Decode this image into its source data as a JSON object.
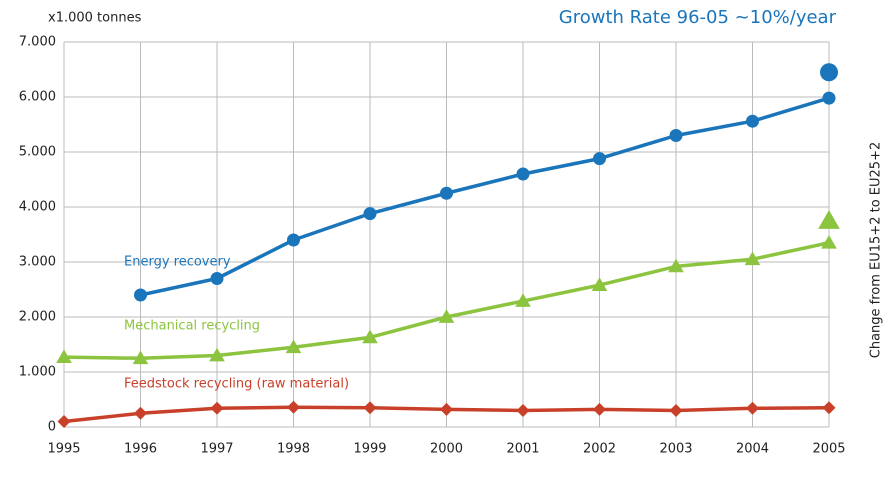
{
  "chart_data": {
    "type": "line",
    "title": "Growth Rate 96-05 ~10%/year",
    "y_label": "x1.000 tonnes",
    "annotation": "Change from EU15+2 to EU25+2",
    "x": [
      1995,
      1996,
      1997,
      1998,
      1999,
      2000,
      2001,
      2002,
      2003,
      2004,
      2005
    ],
    "xlim": [
      1995,
      2005
    ],
    "xticks": [
      1995,
      1996,
      1997,
      1998,
      1999,
      2000,
      2001,
      2002,
      2003,
      2004,
      2005
    ],
    "ylim": [
      0,
      7000
    ],
    "yticks": [
      0,
      {
        "value": 1000,
        "label": "1.000"
      },
      {
        "value": 2000,
        "label": "2.000"
      },
      {
        "value": 3000,
        "label": "3.000"
      },
      {
        "value": 4000,
        "label": "4.000"
      },
      {
        "value": 5000,
        "label": "5.000"
      },
      {
        "value": 6000,
        "label": "6.000"
      },
      {
        "value": 7000,
        "label": "7.000"
      }
    ],
    "grid": true,
    "series": [
      {
        "name": "Energy recovery",
        "color": "#1a75bb",
        "marker": "circle",
        "values": [
          null,
          2400,
          2700,
          3400,
          3880,
          4250,
          4600,
          4880,
          5300,
          5560,
          5980
        ],
        "extra_value": 6450
      },
      {
        "name": "Mechanical recycling",
        "color": "#8cc43f",
        "marker": "triangle",
        "values": [
          1270,
          1250,
          1300,
          1450,
          1630,
          2000,
          2290,
          2580,
          2920,
          3050,
          3350
        ],
        "extra_value": 3750
      },
      {
        "name": "Feedstock recycling (raw material)",
        "color": "#c9402a",
        "marker": "diamond",
        "values": [
          100,
          250,
          340,
          360,
          350,
          320,
          300,
          320,
          300,
          340,
          350
        ]
      }
    ]
  }
}
